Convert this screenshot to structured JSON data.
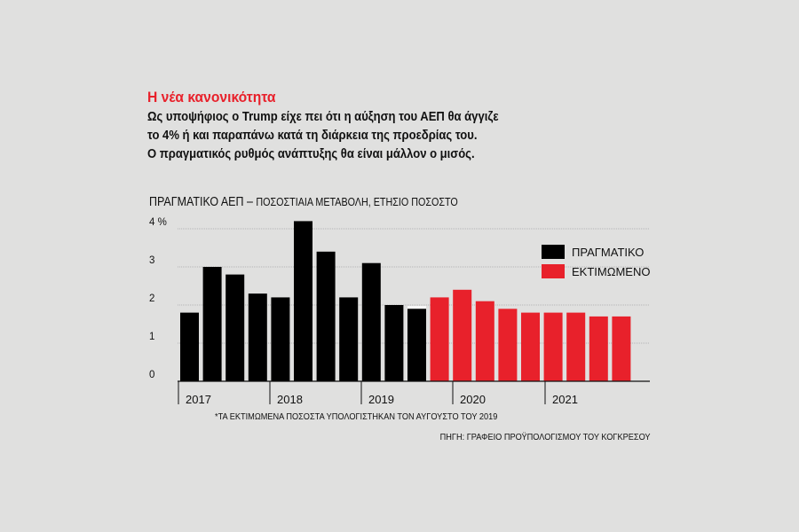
{
  "headline": "Η νέα κανονικότητα",
  "intro_lines": [
    "Ως υποψήφιος ο Trump είχε πει ότι η αύξηση του ΑΕΠ θα άγγιζε",
    "το 4% ή και παραπάνω κατά τη διάρκεια της προεδρίας του.",
    "Ο πραγματικός ρυθμός ανάπτυξης θα είναι μάλλον ο μισός."
  ],
  "colors": {
    "actual": "#000000",
    "estimated": "#e8212b",
    "headline": "#e8212b",
    "grid": "#b5b5b5"
  },
  "chart_data": {
    "type": "bar",
    "title": "ΠΡΑΓΜΑΤΙΚΟ ΑΕΠ – ",
    "subtitle": "ΠΟΣΟΣΤΙΑΙΑ ΜΕΤΑΒΟΛΗ, ΕΤΗΣΙΟ ΠΟΣΟΣΤΟ",
    "xlabel": "",
    "ylabel": "",
    "ylim": [
      0,
      4.3
    ],
    "yticks": [
      0,
      1,
      2,
      3,
      4
    ],
    "ytick_labels": [
      "0",
      "1",
      "2",
      "3",
      "4 %"
    ],
    "year_labels": [
      "2017",
      "2018",
      "2019",
      "2020",
      "2021"
    ],
    "grid": true,
    "legend_position": "top-right",
    "series": [
      {
        "name": "ΠΡΑΓΜΑΤΙΚΟ",
        "color": "#000000",
        "values": [
          1.8,
          3.0,
          2.8,
          2.3,
          2.2,
          4.2,
          3.4,
          2.2,
          3.1,
          2.0,
          1.9
        ]
      },
      {
        "name": "ΕΚΤΙΜΩΜΕΝΟ",
        "color": "#e8212b",
        "values": [
          2.2,
          2.4,
          2.1,
          1.9,
          1.8,
          1.8,
          1.8,
          1.7,
          1.7
        ]
      }
    ]
  },
  "footnote": "*ΤΑ ΕΚΤΙΜΩΜΕΝΑ ΠΟΣΟΣΤΑ ΥΠΟΛΟΓΙΣΤΗΚΑΝ ΤΟΝ ΑΥΓΟΥΣΤΟ ΤΟΥ 2019",
  "source": "ΠΗΓΗ: ΓΡΑΦΕΙΟ ΠΡΟΫΠΟΛΟΓΙΣΜΟΥ ΤΟΥ ΚΟΓΚΡΕΣΟΥ"
}
